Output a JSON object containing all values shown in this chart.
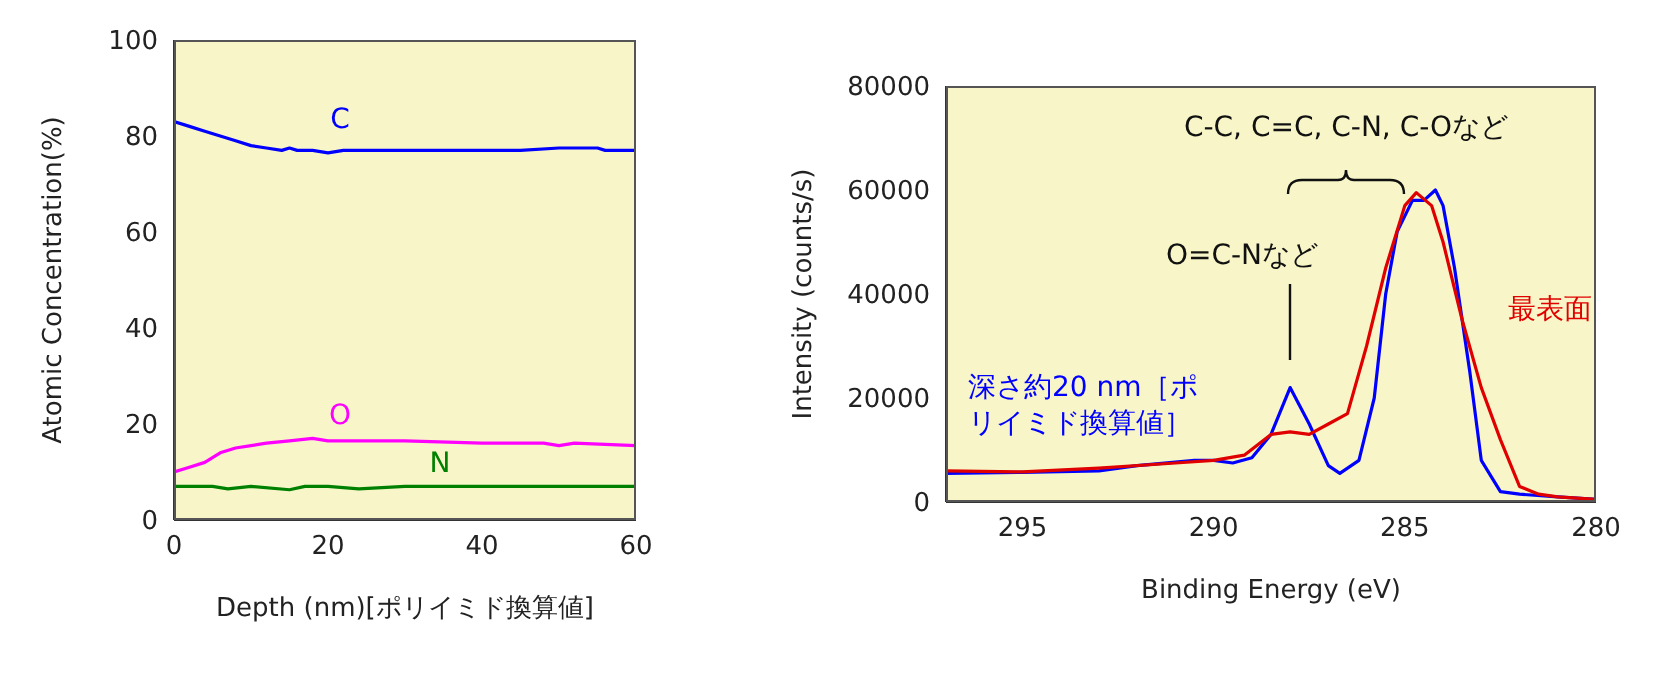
{
  "chart_data": [
    {
      "type": "line",
      "xlabel": "Depth (nm)[ポリイミド換算値]",
      "ylabel": "Atomic Concentration(%)",
      "xlim": [
        0,
        60
      ],
      "xticks": [
        0,
        20,
        40,
        60
      ],
      "ylim": [
        0,
        100
      ],
      "yticks": [
        0,
        20,
        40,
        60,
        80,
        100
      ],
      "grid": false,
      "legend": false,
      "marker": "none",
      "line_style": "solid",
      "series": [
        {
          "name": "C",
          "color": "#0000ff",
          "x": [
            0,
            2,
            4,
            6,
            8,
            10,
            12,
            14,
            15,
            16,
            18,
            20,
            22,
            25,
            30,
            35,
            40,
            45,
            50,
            55,
            56,
            60
          ],
          "values": [
            83,
            82,
            81,
            80,
            79,
            78,
            77.5,
            77,
            77.5,
            77,
            77,
            76.5,
            77,
            77,
            77,
            77,
            77,
            77,
            77.5,
            77.5,
            77,
            77
          ]
        },
        {
          "name": "O",
          "color": "#ff00ff",
          "x": [
            0,
            2,
            4,
            6,
            8,
            10,
            12,
            15,
            18,
            20,
            25,
            30,
            40,
            48,
            50,
            52,
            60
          ],
          "values": [
            10,
            11,
            12,
            14,
            15,
            15.5,
            16,
            16.5,
            17,
            16.5,
            16.5,
            16.5,
            16,
            16,
            15.5,
            16,
            15.5
          ]
        },
        {
          "name": "N",
          "color": "#008000",
          "x": [
            0,
            5,
            7,
            10,
            15,
            17,
            20,
            24,
            30,
            60
          ],
          "values": [
            7,
            7,
            6.5,
            7,
            6.3,
            7,
            7,
            6.5,
            7,
            7
          ]
        }
      ]
    },
    {
      "type": "line",
      "xlabel": "Binding Energy (eV)",
      "ylabel": "Intensity (counts/s)",
      "xlim": [
        297,
        280
      ],
      "xticks": [
        295,
        290,
        285,
        280
      ],
      "ylim": [
        0,
        80000
      ],
      "yticks": [
        0,
        20000,
        40000,
        60000,
        80000
      ],
      "grid": false,
      "legend": false,
      "marker": "none",
      "line_style": "solid",
      "annotations": [
        "C-C, C=C, C-N, C-Oなど",
        "O=C-Nなど"
      ],
      "series": [
        {
          "name": "深さ約20 nm［ポリイミド換算値］",
          "color": "#0000ff",
          "x": [
            297,
            295,
            293,
            292,
            290.5,
            290,
            289.5,
            289,
            288.5,
            288,
            287.5,
            287,
            286.7,
            286.2,
            285.8,
            285.5,
            285.2,
            284.8,
            284.5,
            284.2,
            284,
            283.7,
            283.3,
            283,
            282.5,
            282,
            281,
            280
          ],
          "values": [
            5500,
            5700,
            6000,
            7000,
            8000,
            8000,
            7500,
            8500,
            13000,
            22000,
            15000,
            7000,
            5500,
            8000,
            20000,
            40000,
            52000,
            58000,
            58000,
            60000,
            57000,
            45000,
            25000,
            8000,
            2000,
            1500,
            1000,
            500
          ]
        },
        {
          "name": "最表面",
          "color": "#e00000",
          "x": [
            297,
            295,
            293,
            291,
            290,
            289.2,
            288.5,
            288,
            287.5,
            287,
            286.5,
            286,
            285.5,
            285,
            284.7,
            284.3,
            284,
            283.5,
            283,
            282.5,
            282,
            281.5,
            281,
            280
          ],
          "values": [
            6000,
            5800,
            6500,
            7500,
            8000,
            9000,
            13000,
            13500,
            13000,
            15000,
            17000,
            30000,
            45000,
            57000,
            59500,
            57000,
            50000,
            35000,
            22000,
            12000,
            3000,
            1500,
            1000,
            500
          ]
        }
      ]
    }
  ]
}
